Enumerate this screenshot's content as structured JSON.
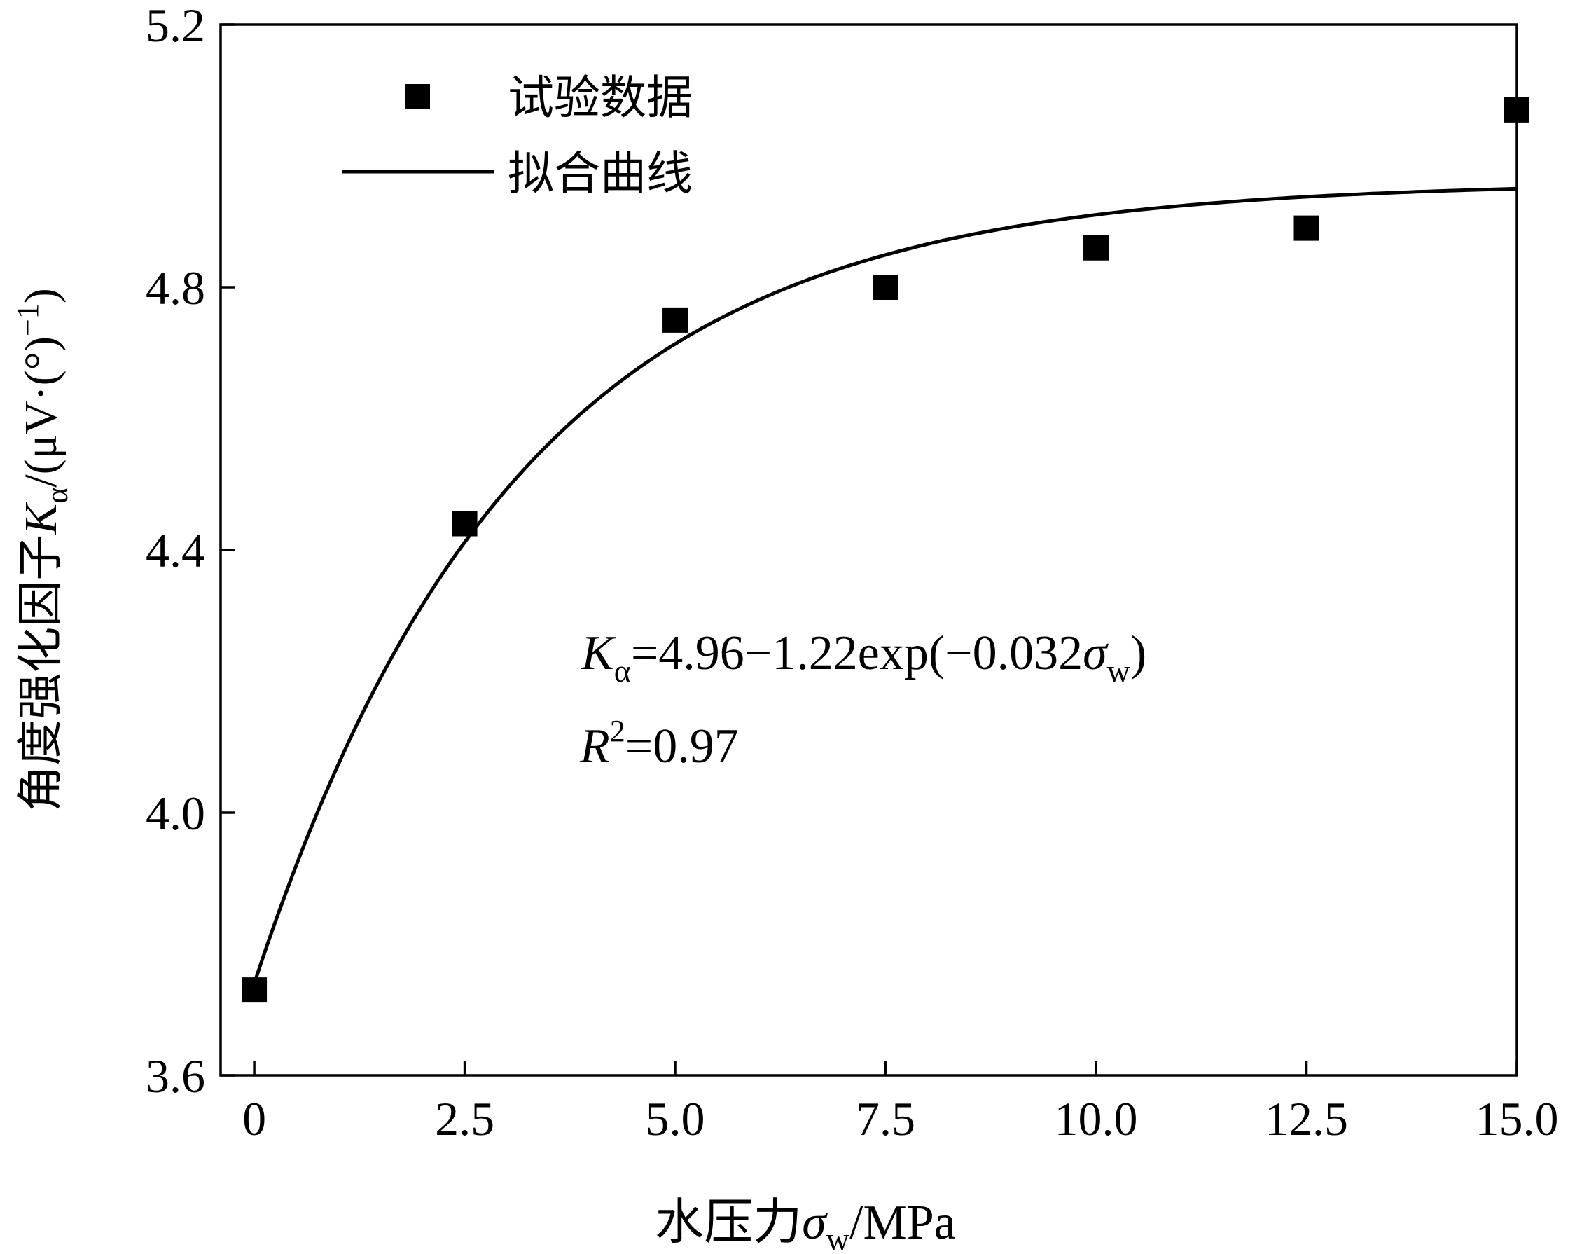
{
  "chart_data": {
    "type": "scatter",
    "xlabel": {
      "prefix": "水压力",
      "sym": "σ",
      "sub": "w",
      "suffix": "/MPa"
    },
    "ylabel": {
      "prefix": "角度强化因子",
      "sym": "K",
      "sub": "α",
      "suffix": "/(μV·(°)",
      "sup": "−1",
      "close": ")"
    },
    "xlim": [
      -0.4,
      15.0
    ],
    "ylim": [
      3.6,
      5.2
    ],
    "xticks": [
      0,
      2.5,
      5.0,
      7.5,
      10.0,
      12.5,
      15.0
    ],
    "xtick_labels": [
      "0",
      "2.5",
      "5.0",
      "7.5",
      "10.0",
      "12.5",
      "15.0"
    ],
    "yticks": [
      3.6,
      4.0,
      4.4,
      4.8,
      5.2
    ],
    "ytick_labels": [
      "3.6",
      "4.0",
      "4.4",
      "4.8",
      "5.2"
    ],
    "series": [
      {
        "name": "试验数据",
        "kind": "scatter",
        "x": [
          0,
          2.5,
          5.0,
          7.5,
          10.0,
          12.5,
          15.0
        ],
        "y": [
          3.73,
          4.44,
          4.75,
          4.8,
          4.86,
          4.89,
          5.07
        ]
      },
      {
        "name": "拟合曲线",
        "kind": "line",
        "model": {
          "a": 4.96,
          "b": 1.22,
          "c": 0.032
        },
        "x_range": [
          0,
          15.0
        ]
      }
    ],
    "legend": {
      "position": "top-left",
      "entries": [
        "试验数据",
        "拟合曲线"
      ]
    },
    "annotation": {
      "equation": {
        "sym": "K",
        "sub": "α",
        "body": "=4.96−1.22exp(−0.032",
        "sym2": "σ",
        "sub2": "w",
        "close": ")"
      },
      "r2": {
        "sym": "R",
        "sup": "2",
        "body": "=0.97"
      }
    },
    "grid": false
  }
}
